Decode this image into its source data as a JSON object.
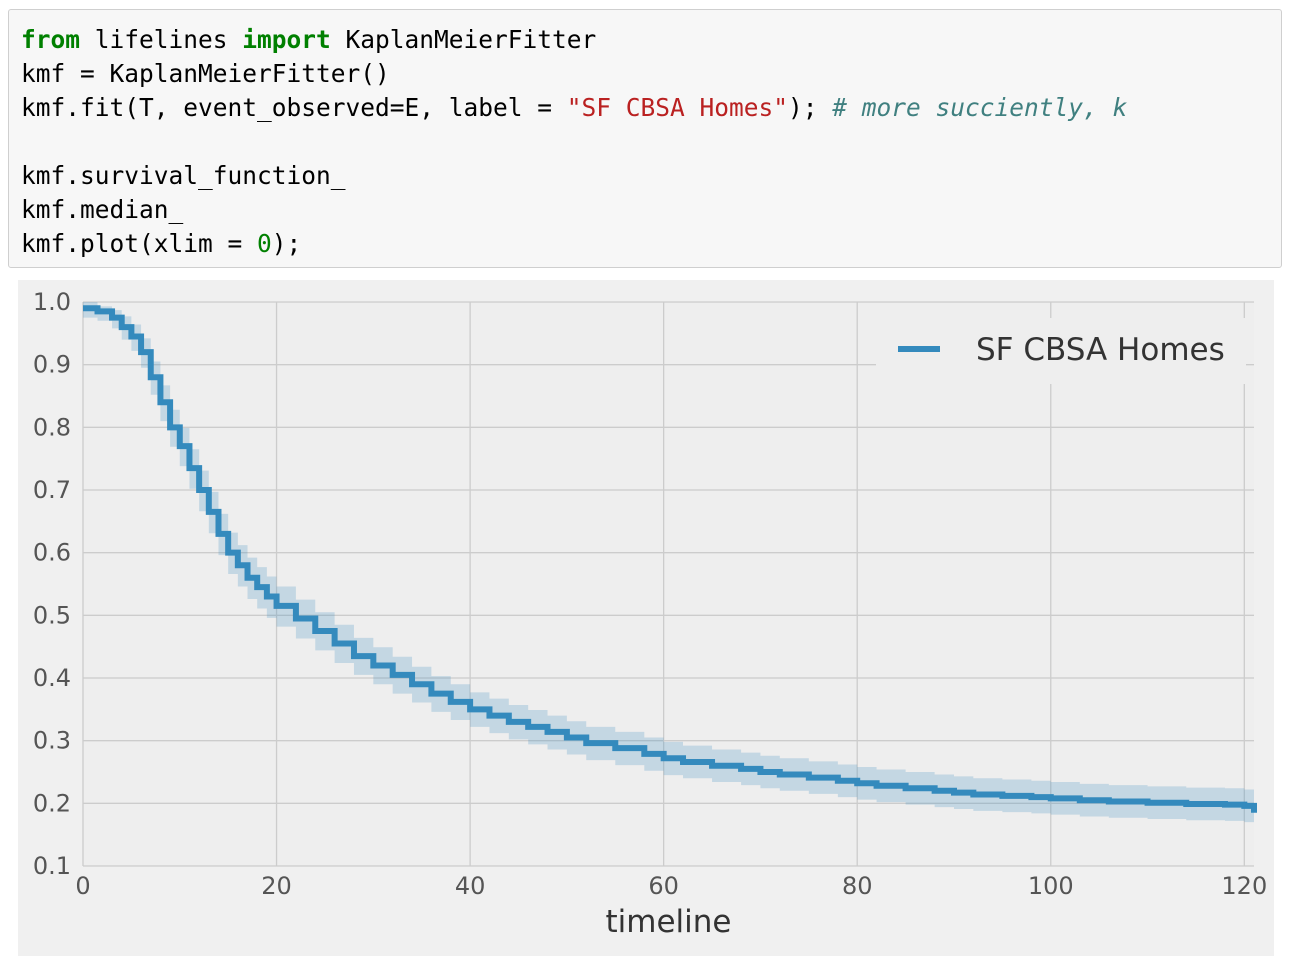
{
  "code_cell": {
    "lines": [
      [
        {
          "t": "from",
          "c": "kw"
        },
        {
          "t": " lifelines ",
          "c": ""
        },
        {
          "t": "import",
          "c": "kw"
        },
        {
          "t": " KaplanMeierFitter",
          "c": ""
        }
      ],
      [
        {
          "t": "kmf = KaplanMeierFitter()",
          "c": ""
        }
      ],
      [
        {
          "t": "kmf.fit(T, event_observed=E, label = ",
          "c": ""
        },
        {
          "t": "\"SF CBSA Homes\"",
          "c": "str"
        },
        {
          "t": "); ",
          "c": ""
        },
        {
          "t": "# more succiently, k",
          "c": "com"
        }
      ],
      [
        {
          "t": "",
          "c": ""
        }
      ],
      [
        {
          "t": "kmf.survival_function_",
          "c": ""
        }
      ],
      [
        {
          "t": "kmf.median_",
          "c": ""
        }
      ],
      [
        {
          "t": "kmf.plot(xlim = ",
          "c": ""
        },
        {
          "t": "0",
          "c": "num"
        },
        {
          "t": ");",
          "c": ""
        }
      ]
    ]
  },
  "chart_data": {
    "type": "line",
    "step": true,
    "xlabel": "timeline",
    "ylabel": "",
    "xlim": [
      0,
      121
    ],
    "ylim": [
      0.1,
      1.0
    ],
    "x_ticks": [
      0,
      20,
      40,
      60,
      80,
      100,
      120
    ],
    "y_ticks": [
      0.1,
      0.2,
      0.3,
      0.4,
      0.5,
      0.6,
      0.7,
      0.8,
      0.9,
      1.0
    ],
    "y_tick_labels": [
      "0.1",
      "0.2",
      "0.3",
      "0.4",
      "0.5",
      "0.6",
      "0.7",
      "0.8",
      "0.9",
      "1.0"
    ],
    "grid": true,
    "legend_position": "top-right",
    "series": [
      {
        "name": "SF CBSA Homes",
        "color": "#348abd",
        "x": [
          0,
          1.5,
          3,
          4,
          5,
          6,
          7,
          8,
          9,
          10,
          11,
          12,
          13,
          14,
          15,
          16,
          17,
          18,
          19,
          20,
          22,
          24,
          26,
          28,
          30,
          32,
          34,
          36,
          38,
          40,
          42,
          44,
          46,
          48,
          50,
          52,
          55,
          58,
          60,
          62,
          65,
          68,
          70,
          72,
          75,
          78,
          80,
          82,
          85,
          88,
          90,
          92,
          95,
          98,
          100,
          103,
          106,
          110,
          114,
          118,
          120,
          121
        ],
        "y": [
          0.99,
          0.985,
          0.975,
          0.96,
          0.945,
          0.92,
          0.88,
          0.84,
          0.8,
          0.77,
          0.735,
          0.7,
          0.665,
          0.63,
          0.6,
          0.58,
          0.56,
          0.545,
          0.53,
          0.515,
          0.495,
          0.475,
          0.455,
          0.435,
          0.42,
          0.405,
          0.39,
          0.375,
          0.362,
          0.35,
          0.34,
          0.33,
          0.322,
          0.314,
          0.305,
          0.296,
          0.288,
          0.279,
          0.272,
          0.266,
          0.26,
          0.255,
          0.25,
          0.246,
          0.241,
          0.236,
          0.232,
          0.228,
          0.224,
          0.22,
          0.217,
          0.214,
          0.212,
          0.21,
          0.208,
          0.205,
          0.203,
          0.201,
          0.199,
          0.198,
          0.196,
          0.185
        ],
        "ci_upper": [
          1.0,
          0.993,
          0.987,
          0.977,
          0.964,
          0.942,
          0.905,
          0.867,
          0.828,
          0.799,
          0.765,
          0.731,
          0.697,
          0.662,
          0.632,
          0.612,
          0.592,
          0.577,
          0.562,
          0.546,
          0.525,
          0.505,
          0.485,
          0.464,
          0.449,
          0.434,
          0.418,
          0.403,
          0.39,
          0.377,
          0.367,
          0.357,
          0.349,
          0.34,
          0.331,
          0.322,
          0.314,
          0.305,
          0.298,
          0.292,
          0.286,
          0.281,
          0.276,
          0.272,
          0.267,
          0.262,
          0.258,
          0.254,
          0.25,
          0.246,
          0.243,
          0.24,
          0.238,
          0.236,
          0.234,
          0.231,
          0.229,
          0.227,
          0.225,
          0.224,
          0.222,
          0.215
        ],
        "ci_lower": [
          0.975,
          0.97,
          0.958,
          0.94,
          0.922,
          0.895,
          0.852,
          0.81,
          0.769,
          0.738,
          0.702,
          0.666,
          0.631,
          0.596,
          0.566,
          0.546,
          0.526,
          0.511,
          0.496,
          0.482,
          0.463,
          0.444,
          0.424,
          0.405,
          0.39,
          0.375,
          0.361,
          0.346,
          0.333,
          0.322,
          0.312,
          0.302,
          0.294,
          0.286,
          0.278,
          0.269,
          0.261,
          0.252,
          0.245,
          0.24,
          0.234,
          0.229,
          0.224,
          0.22,
          0.215,
          0.21,
          0.206,
          0.202,
          0.198,
          0.194,
          0.191,
          0.188,
          0.186,
          0.184,
          0.182,
          0.179,
          0.177,
          0.175,
          0.173,
          0.172,
          0.17,
          0.155
        ]
      }
    ]
  },
  "colors": {
    "axes_background": "#eeeeee",
    "grid": "#cccccc",
    "line": "#348abd"
  }
}
